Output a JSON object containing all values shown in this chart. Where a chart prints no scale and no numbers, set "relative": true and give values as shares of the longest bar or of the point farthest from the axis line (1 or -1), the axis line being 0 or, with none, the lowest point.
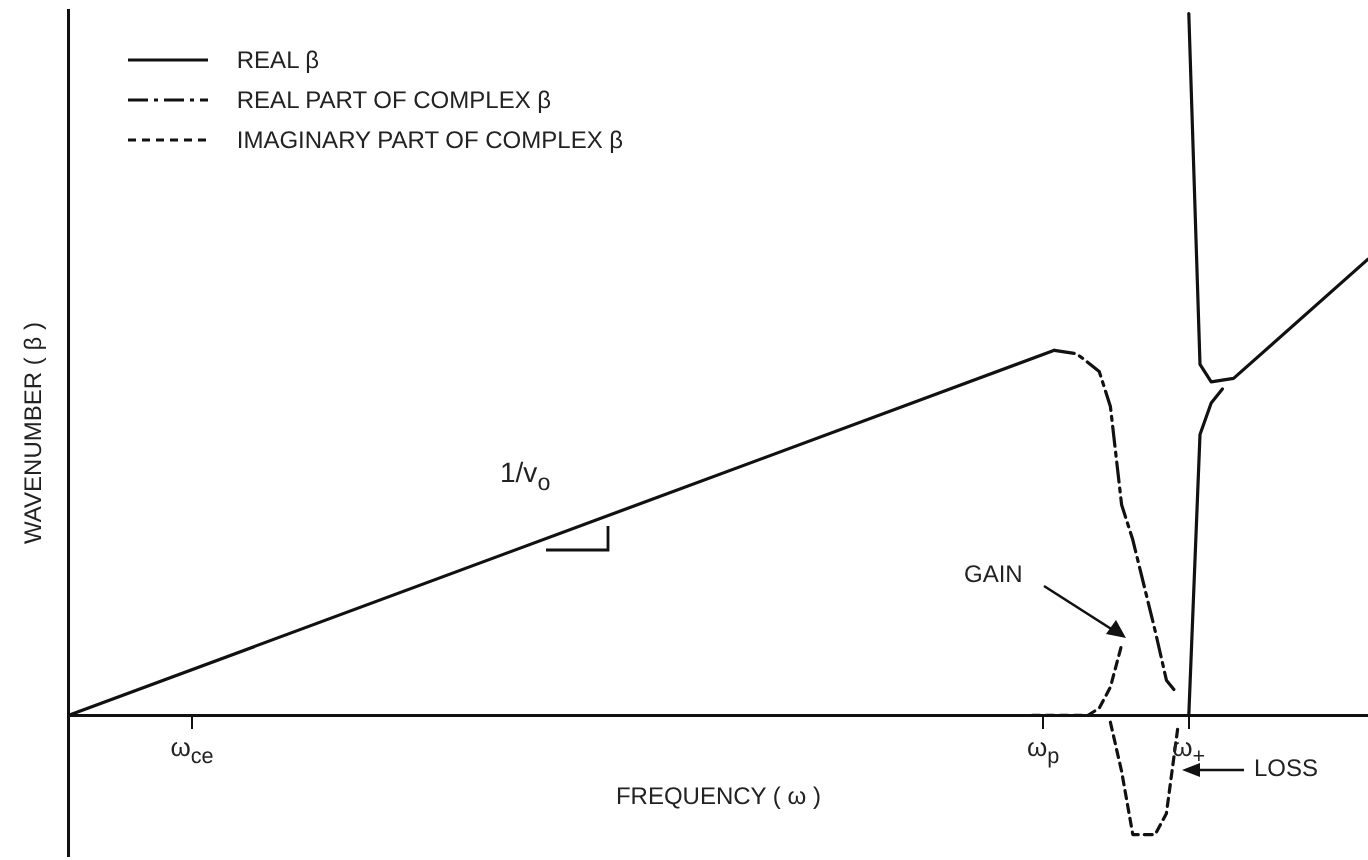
{
  "chart_data": {
    "type": "line",
    "relative": true,
    "xlabel": "FREQUENCY ( ω )",
    "ylabel": "WAVENUMBER ( β )",
    "categories": [
      null,
      null,
      null,
      null,
      null,
      null,
      null,
      null,
      null,
      null,
      null,
      "ω$_{ce}$",
      null,
      null,
      null,
      null,
      null,
      null,
      null,
      null,
      null,
      null,
      null,
      null,
      null,
      null,
      null,
      null,
      null,
      null,
      null,
      null,
      null,
      null,
      null,
      null,
      null,
      null,
      null,
      null,
      null,
      null,
      null,
      null,
      null,
      null,
      null,
      null,
      null,
      null,
      null,
      null,
      null,
      null,
      null,
      null,
      null,
      null,
      null,
      null,
      null,
      null,
      null,
      null,
      null,
      null,
      null,
      null,
      null,
      null,
      null,
      null,
      null,
      null,
      null,
      null,
      null,
      null,
      null,
      null,
      null,
      null,
      null,
      null,
      null,
      null,
      null,
      "ω$_{p}$",
      null,
      null,
      null,
      null,
      null,
      null,
      null,
      null,
      null,
      null,
      null,
      null,
      "ω$_{+}$",
      null,
      null,
      null,
      null,
      null,
      null,
      null,
      null,
      null,
      null,
      null,
      null,
      null,
      null,
      null,
      null
    ],
    "legend": "top left",
    "series": [
      {
        "name": "REAL β",
        "color": "#111111",
        "line_style": "solid",
        "values": [
          0,
          null,
          null,
          null,
          null,
          null,
          null,
          null,
          null,
          null,
          null,
          null,
          null,
          null,
          null,
          null,
          null,
          null,
          null,
          null,
          null,
          null,
          null,
          null,
          null,
          null,
          null,
          null,
          null,
          null,
          null,
          null,
          null,
          null,
          null,
          null,
          null,
          null,
          null,
          null,
          null,
          null,
          null,
          null,
          null,
          null,
          null,
          null,
          null,
          null,
          null,
          null,
          null,
          null,
          null,
          null,
          null,
          null,
          null,
          null,
          null,
          null,
          null,
          null,
          null,
          null,
          null,
          null,
          null,
          null,
          null,
          null,
          null,
          null,
          null,
          null,
          null,
          null,
          null,
          null,
          null,
          null,
          null,
          null,
          null,
          null,
          null,
          null,
          0.52,
          null,
          null,
          null,
          null,
          null,
          null,
          null,
          null,
          null,
          null,
          null,
          null,
          null,
          null,
          null,
          null,
          null,
          null,
          null,
          null,
          null,
          null,
          null,
          null,
          null,
          null,
          null,
          null
        ]
      },
      {
        "color": "#111111",
        "line_style": "solid",
        "values": [
          null,
          null,
          null,
          null,
          null,
          null,
          null,
          null,
          null,
          null,
          null,
          null,
          null,
          null,
          null,
          null,
          null,
          null,
          null,
          null,
          null,
          null,
          null,
          null,
          null,
          null,
          null,
          null,
          null,
          null,
          null,
          null,
          null,
          null,
          null,
          null,
          null,
          null,
          null,
          null,
          null,
          null,
          null,
          null,
          null,
          null,
          null,
          null,
          null,
          null,
          null,
          null,
          null,
          null,
          null,
          null,
          null,
          null,
          null,
          null,
          null,
          null,
          null,
          null,
          null,
          null,
          null,
          null,
          null,
          null,
          null,
          null,
          null,
          null,
          null,
          null,
          null,
          null,
          null,
          null,
          null,
          null,
          null,
          null,
          null,
          null,
          null,
          null,
          null,
          null,
          null,
          null,
          null,
          null,
          null,
          null,
          null,
          null,
          null,
          null,
          1.0,
          0.5,
          0.475,
          null,
          0.48,
          null,
          null,
          null,
          null,
          null,
          null,
          null,
          null,
          null,
          null,
          null,
          0.65
        ]
      },
      {
        "color": "#111111",
        "line_style": "solid",
        "values": [
          null,
          null,
          null,
          null,
          null,
          null,
          null,
          null,
          null,
          null,
          null,
          null,
          null,
          null,
          null,
          null,
          null,
          null,
          null,
          null,
          null,
          null,
          null,
          null,
          null,
          null,
          null,
          null,
          null,
          null,
          null,
          null,
          null,
          null,
          null,
          null,
          null,
          null,
          null,
          null,
          null,
          null,
          null,
          null,
          null,
          null,
          null,
          null,
          null,
          null,
          null,
          null,
          null,
          null,
          null,
          null,
          null,
          null,
          null,
          null,
          null,
          null,
          null,
          null,
          null,
          null,
          null,
          null,
          null,
          null,
          null,
          null,
          null,
          null,
          null,
          null,
          null,
          null,
          null,
          null,
          null,
          null,
          null,
          null,
          null,
          null,
          null,
          null,
          null,
          null,
          null,
          null,
          null,
          null,
          null,
          null,
          null,
          null,
          null,
          null,
          0,
          0.4,
          0.445,
          0.465,
          null,
          null,
          null,
          null,
          null,
          null,
          null,
          null,
          null,
          null,
          null,
          null,
          null
        ]
      },
      {
        "name": "REAL PART OF COMPLEX  β",
        "color": "#111111",
        "line_style": "dashed",
        "values": [
          null,
          null,
          null,
          null,
          null,
          null,
          null,
          null,
          null,
          null,
          null,
          null,
          null,
          null,
          null,
          null,
          null,
          null,
          null,
          null,
          null,
          null,
          null,
          null,
          null,
          null,
          null,
          null,
          null,
          null,
          null,
          null,
          null,
          null,
          null,
          null,
          null,
          null,
          null,
          null,
          null,
          null,
          null,
          null,
          null,
          null,
          null,
          null,
          null,
          null,
          null,
          null,
          null,
          null,
          null,
          null,
          null,
          null,
          null,
          null,
          null,
          null,
          null,
          null,
          null,
          null,
          null,
          null,
          null,
          null,
          null,
          null,
          null,
          null,
          null,
          null,
          null,
          null,
          null,
          null,
          null,
          null,
          null,
          null,
          null,
          null,
          null,
          null,
          0.52,
          null,
          0.515,
          null,
          0.49,
          0.44,
          0.3,
          0.25,
          null,
          0.12,
          0.05,
          0.03,
          null,
          null,
          null,
          null,
          null,
          null,
          null,
          null,
          null,
          null,
          null,
          null,
          null,
          null,
          null,
          null,
          null
        ]
      },
      {
        "name": "IMAGINARY PART OF COMPLEX β",
        "color": "#111111",
        "line_style": "dotted",
        "values": [
          null,
          null,
          null,
          null,
          null,
          null,
          null,
          null,
          null,
          null,
          null,
          null,
          null,
          null,
          null,
          null,
          null,
          null,
          null,
          null,
          null,
          null,
          null,
          null,
          null,
          null,
          null,
          null,
          null,
          null,
          null,
          null,
          null,
          null,
          null,
          null,
          null,
          null,
          null,
          null,
          null,
          null,
          null,
          null,
          null,
          null,
          null,
          null,
          null,
          null,
          null,
          null,
          null,
          null,
          null,
          null,
          null,
          null,
          null,
          null,
          null,
          null,
          null,
          null,
          null,
          null,
          null,
          null,
          null,
          null,
          null,
          null,
          null,
          null,
          null,
          null,
          null,
          null,
          null,
          null,
          null,
          null,
          null,
          null,
          null,
          null,
          0,
          null,
          null,
          null,
          null,
          0,
          0.01,
          0.04,
          0.1,
          null,
          null,
          null,
          null,
          null,
          null,
          null,
          null,
          null,
          null,
          null,
          null,
          null,
          null,
          null,
          null,
          null,
          null,
          null,
          null,
          null,
          null
        ]
      },
      {
        "color": "#111111",
        "line_style": "dotted",
        "values": [
          null,
          null,
          null,
          null,
          null,
          null,
          null,
          null,
          null,
          null,
          null,
          null,
          null,
          null,
          null,
          null,
          null,
          null,
          null,
          null,
          null,
          null,
          null,
          null,
          null,
          null,
          null,
          null,
          null,
          null,
          null,
          null,
          null,
          null,
          null,
          null,
          null,
          null,
          null,
          null,
          null,
          null,
          null,
          null,
          null,
          null,
          null,
          null,
          null,
          null,
          null,
          null,
          null,
          null,
          null,
          null,
          null,
          null,
          null,
          null,
          null,
          null,
          null,
          null,
          null,
          null,
          null,
          null,
          null,
          null,
          null,
          null,
          null,
          null,
          null,
          null,
          null,
          null,
          null,
          null,
          null,
          null,
          null,
          null,
          null,
          null,
          null,
          null,
          null,
          null,
          null,
          null,
          null,
          -0.01,
          -0.08,
          -0.17,
          null,
          -0.17,
          -0.14,
          -0.02,
          null,
          null,
          null,
          null,
          null,
          null,
          null,
          null,
          null,
          null,
          null,
          null,
          null,
          null,
          null,
          null,
          null
        ]
      }
    ],
    "annotations": [
      "1/v$_{o}$",
      "GAIN",
      "LOSS"
    ]
  }
}
